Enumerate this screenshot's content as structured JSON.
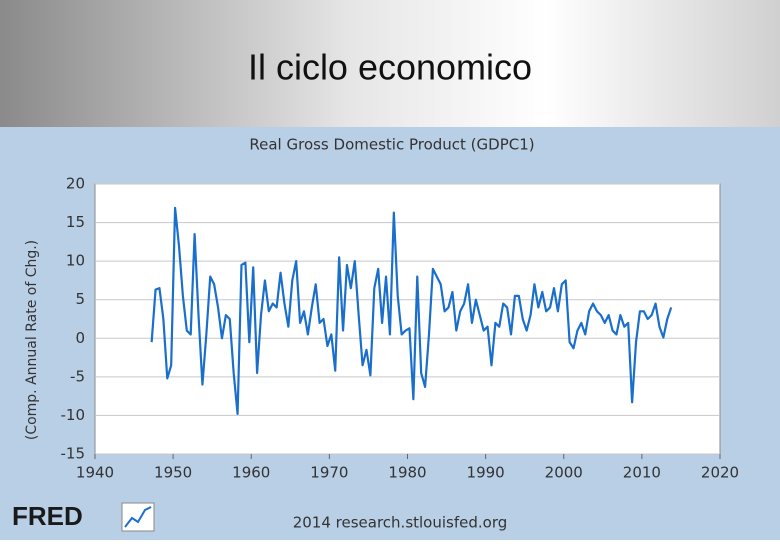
{
  "header": {
    "title": "Il ciclo economico"
  },
  "chart_data": {
    "type": "line",
    "title": "Real Gross Domestic Product (GDPC1)",
    "y_label": "(Comp. Annual Rate of Chg.)",
    "source": "2014 research.stlouisfed.org",
    "logo": "FRED",
    "x": [
      1947.25,
      1947.75,
      1948.25,
      1948.75,
      1949.25,
      1949.75,
      1950.25,
      1950.75,
      1951.25,
      1951.75,
      1952.25,
      1952.75,
      1953.25,
      1953.75,
      1954.25,
      1954.75,
      1955.25,
      1955.75,
      1956.25,
      1956.75,
      1957.25,
      1957.75,
      1958.25,
      1958.75,
      1959.25,
      1959.75,
      1960.25,
      1960.75,
      1961.25,
      1961.75,
      1962.25,
      1962.75,
      1963.25,
      1963.75,
      1964.25,
      1964.75,
      1965.25,
      1965.75,
      1966.25,
      1966.75,
      1967.25,
      1967.75,
      1968.25,
      1968.75,
      1969.25,
      1969.75,
      1970.25,
      1970.75,
      1971.25,
      1971.75,
      1972.25,
      1972.75,
      1973.25,
      1973.75,
      1974.25,
      1974.75,
      1975.25,
      1975.75,
      1976.25,
      1976.75,
      1977.25,
      1977.75,
      1978.25,
      1978.75,
      1979.25,
      1979.75,
      1980.25,
      1980.75,
      1981.25,
      1981.75,
      1982.25,
      1982.75,
      1983.25,
      1983.75,
      1984.25,
      1984.75,
      1985.25,
      1985.75,
      1986.25,
      1986.75,
      1987.25,
      1987.75,
      1988.25,
      1988.75,
      1989.25,
      1989.75,
      1990.25,
      1990.75,
      1991.25,
      1991.75,
      1992.25,
      1992.75,
      1993.25,
      1993.75,
      1994.25,
      1994.75,
      1995.25,
      1995.75,
      1996.25,
      1996.75,
      1997.25,
      1997.75,
      1998.25,
      1998.75,
      1999.25,
      1999.75,
      2000.25,
      2000.75,
      2001.25,
      2001.75,
      2002.25,
      2002.75,
      2003.25,
      2003.75,
      2004.25,
      2004.75,
      2005.25,
      2005.75,
      2006.25,
      2006.75,
      2007.25,
      2007.75,
      2008.25,
      2008.75,
      2009.25,
      2009.75,
      2010.25,
      2010.75,
      2011.25,
      2011.75,
      2012.25,
      2012.75,
      2013.25,
      2013.75
    ],
    "series": [
      {
        "name": "GDPC1",
        "color": "#1a6fcc",
        "values": [
          -0.5,
          6.3,
          6.5,
          2.5,
          -5.2,
          -3.5,
          16.9,
          12.0,
          5.5,
          1.0,
          0.5,
          13.5,
          3.0,
          -6.0,
          0.5,
          8.0,
          7.0,
          4.0,
          0.0,
          3.0,
          2.5,
          -4.5,
          -9.8,
          9.5,
          9.8,
          -0.5,
          9.2,
          -4.5,
          3.0,
          7.5,
          3.5,
          4.5,
          4.0,
          8.5,
          4.5,
          1.5,
          7.5,
          10.0,
          2.0,
          3.5,
          0.5,
          4.0,
          7.0,
          2.0,
          2.5,
          -1.0,
          0.5,
          -4.2,
          10.5,
          1.0,
          9.5,
          6.5,
          10.0,
          3.0,
          -3.5,
          -1.5,
          -4.8,
          6.5,
          9.0,
          2.0,
          8.0,
          0.5,
          16.3,
          5.5,
          0.5,
          1.0,
          1.3,
          -7.9,
          8.0,
          -4.5,
          -6.3,
          0.5,
          9.0,
          8.0,
          7.0,
          3.5,
          4.0,
          6.0,
          1.0,
          3.5,
          4.5,
          7.0,
          2.0,
          5.0,
          3.0,
          1.0,
          1.5,
          -3.5,
          2.0,
          1.5,
          4.5,
          4.0,
          0.5,
          5.5,
          5.5,
          2.5,
          1.0,
          3.0,
          7.0,
          4.0,
          6.0,
          3.5,
          4.0,
          6.5,
          3.5,
          7.0,
          7.5,
          -0.5,
          -1.3,
          1.0,
          2.0,
          0.5,
          3.5,
          4.5,
          3.5,
          3.0,
          2.0,
          3.0,
          1.0,
          0.5,
          3.0,
          1.5,
          2.0,
          -8.3,
          -0.5,
          3.5,
          3.5,
          2.5,
          3.0,
          4.5,
          1.5,
          0.1,
          2.5,
          4.0
        ]
      }
    ],
    "xlim": [
      1940,
      2020
    ],
    "xticks": [
      1940,
      1950,
      1960,
      1970,
      1980,
      1990,
      2000,
      2010,
      2020
    ],
    "ylim": [
      -15,
      20
    ],
    "yticks": [
      20,
      15,
      10,
      5,
      0,
      -5,
      -10,
      -15
    ],
    "grid": true
  }
}
